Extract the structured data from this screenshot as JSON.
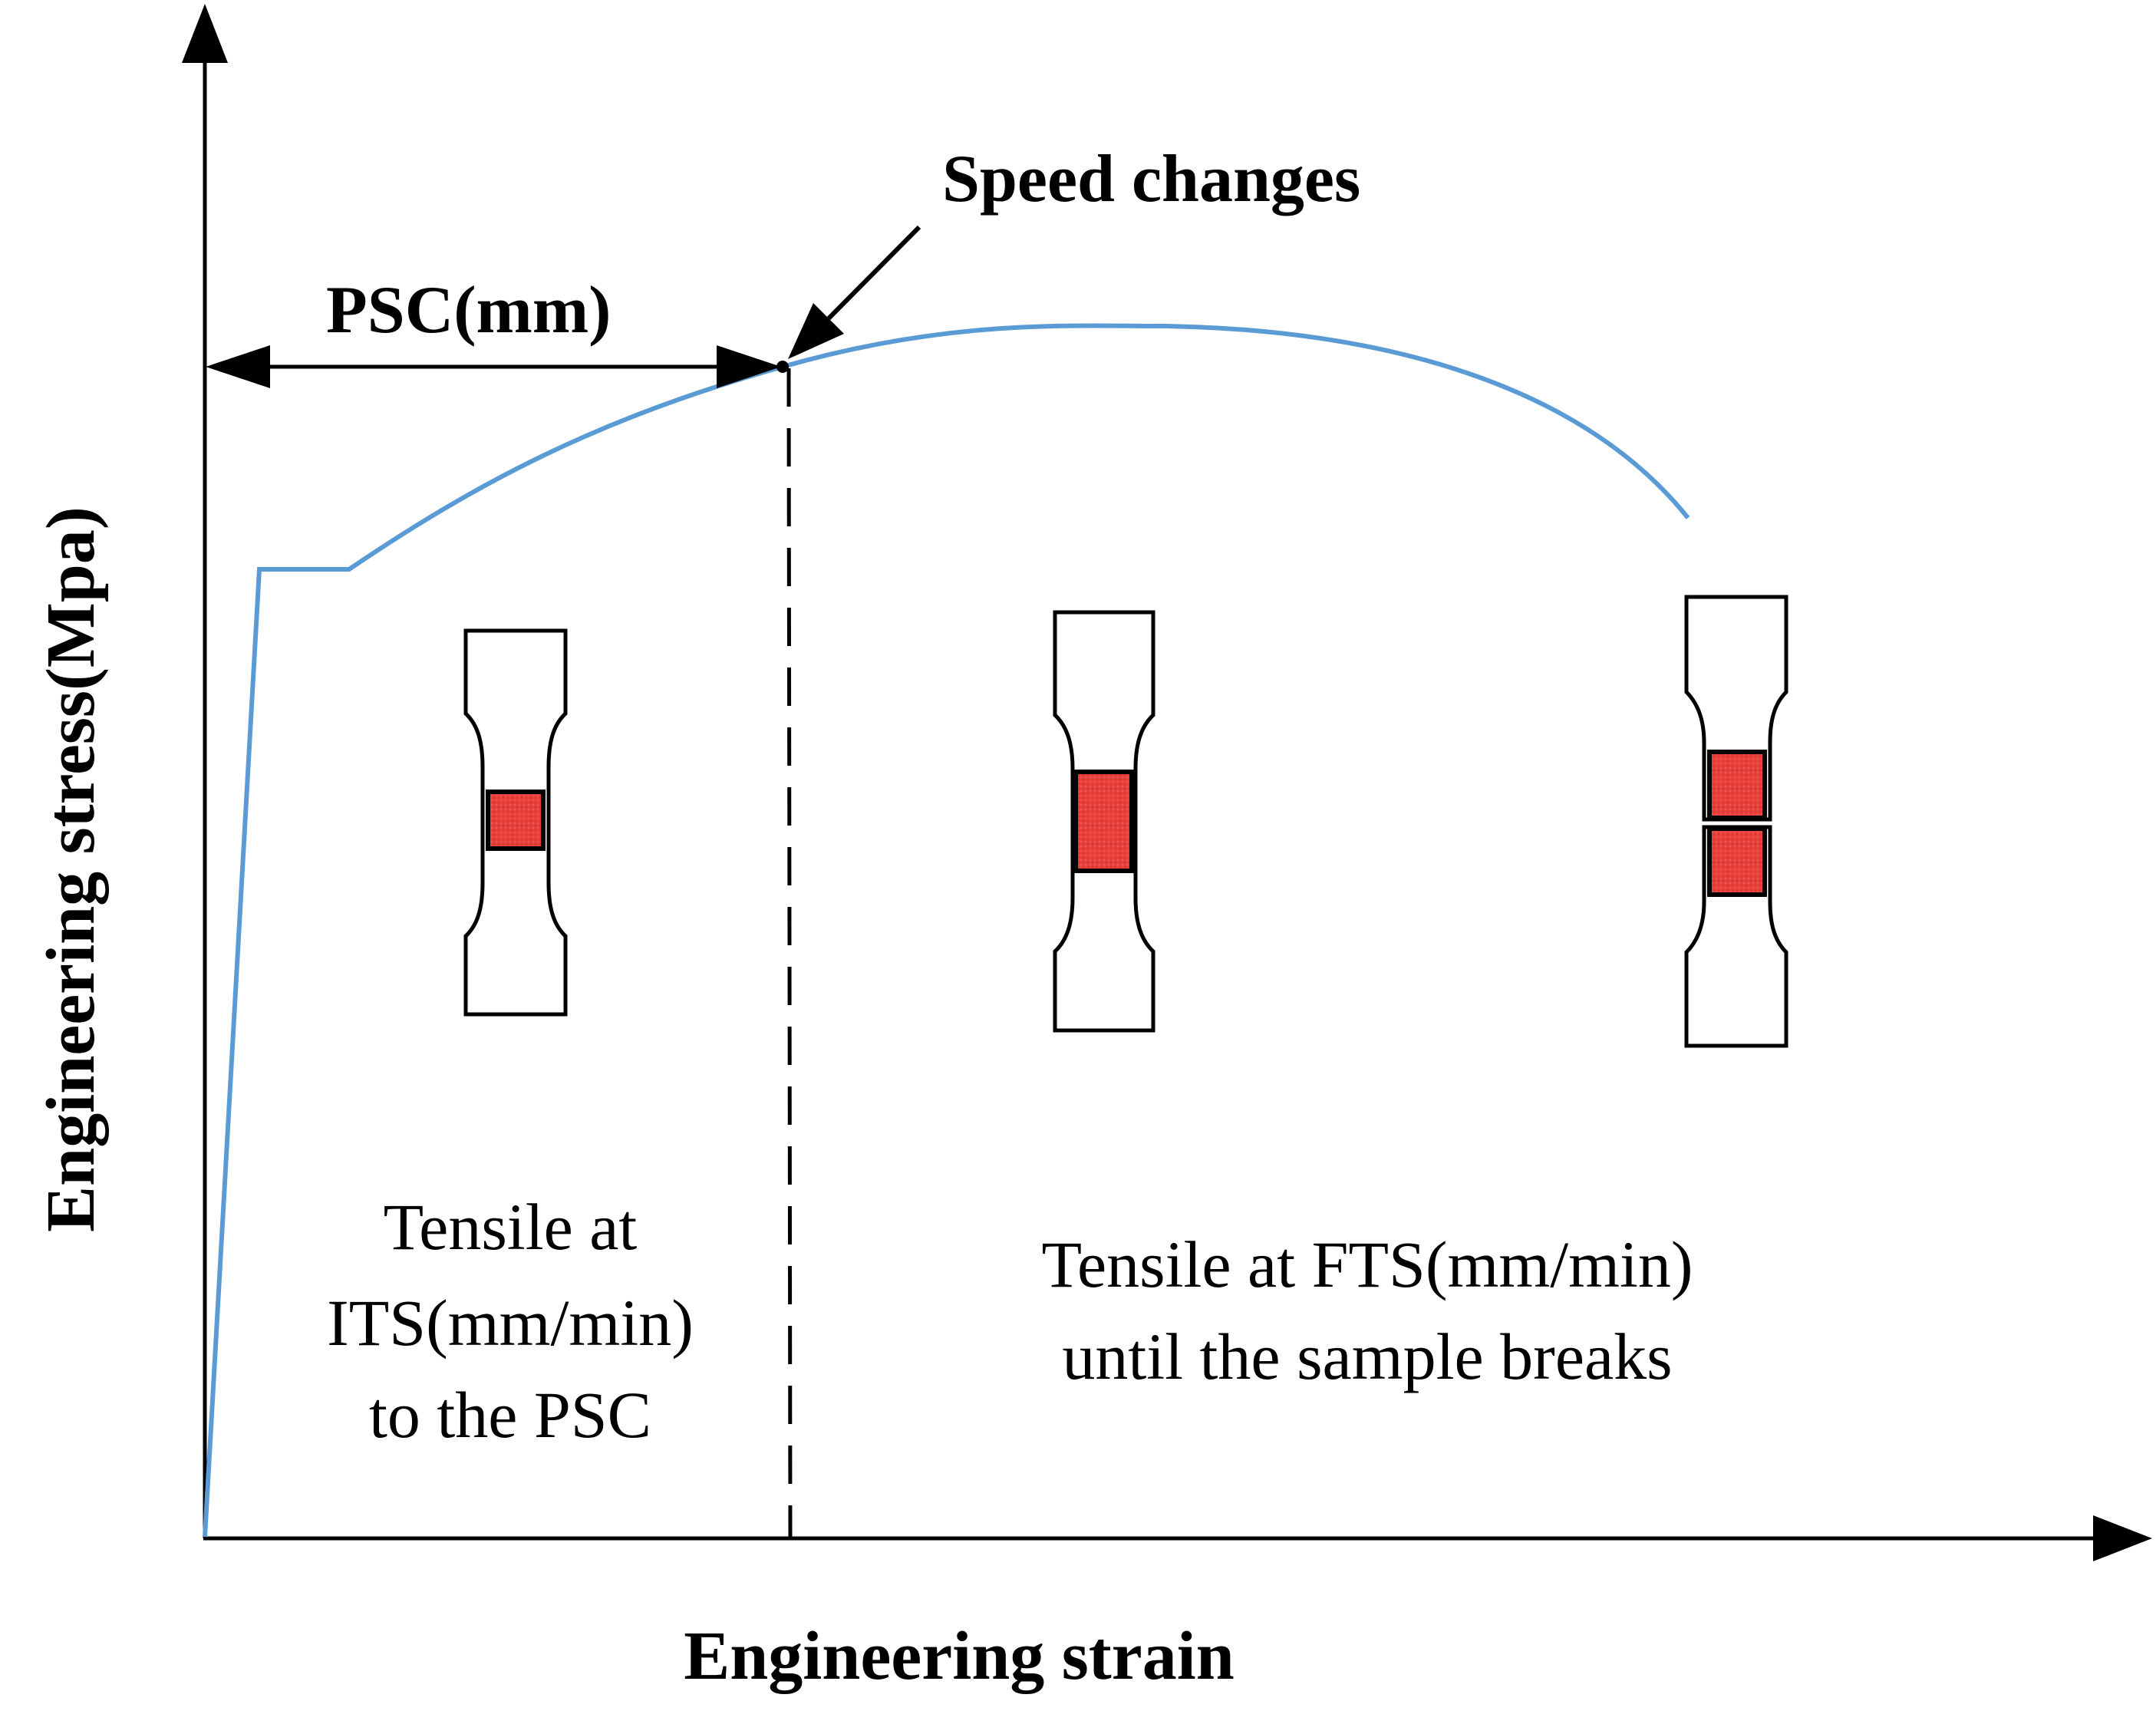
{
  "labels": {
    "y_axis": "Engineering stress(Mpa)",
    "x_axis": "Engineering strain",
    "speed_changes": "Speed changes",
    "psc": "PSC(mm)",
    "left_region": [
      "Tensile at",
      "ITS(mm/min)",
      "to the PSC"
    ],
    "right_region": [
      "Tensile at FTS(mm/min)",
      "until the sample breaks"
    ]
  },
  "colors": {
    "curve": "#5b9bd5",
    "axis": "#000000",
    "specimen_outline": "#000000",
    "specimen_fill": "#ffffff",
    "gauge_fill": "#e8403b"
  },
  "specimens": [
    {
      "stage": "before speed change",
      "state": "short gauge"
    },
    {
      "stage": "after speed change",
      "state": "elongated gauge"
    },
    {
      "stage": "fracture",
      "state": "broken"
    }
  ]
}
